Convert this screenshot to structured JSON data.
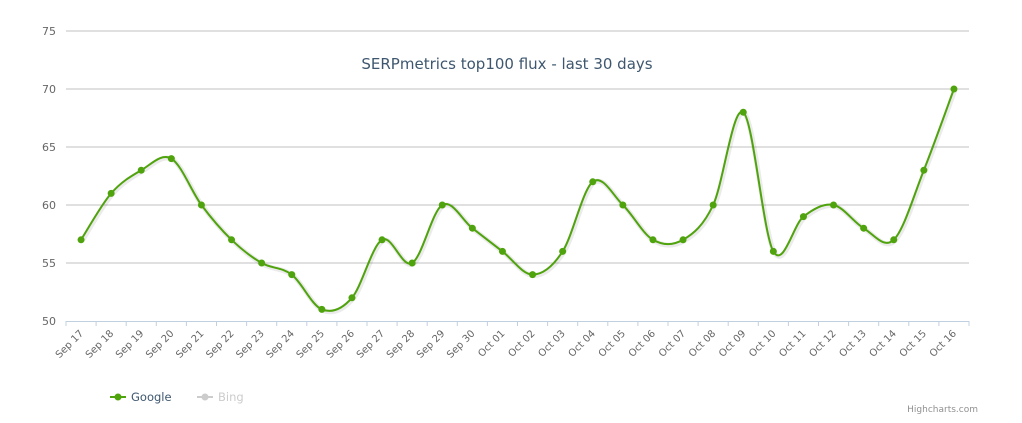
{
  "chart_data": {
    "type": "line",
    "title": "SERPmetrics top100 flux - last 30 days",
    "xlabel": "",
    "ylabel": "",
    "ylim": [
      50,
      75
    ],
    "yticks": [
      50,
      55,
      60,
      65,
      70,
      75
    ],
    "grid": true,
    "legend_position": "bottom-left",
    "categories": [
      "Sep 17",
      "Sep 18",
      "Sep 19",
      "Sep 20",
      "Sep 21",
      "Sep 22",
      "Sep 23",
      "Sep 24",
      "Sep 25",
      "Sep 26",
      "Sep 27",
      "Sep 28",
      "Sep 29",
      "Sep 30",
      "Oct 01",
      "Oct 02",
      "Oct 03",
      "Oct 04",
      "Oct 05",
      "Oct 06",
      "Oct 07",
      "Oct 08",
      "Oct 09",
      "Oct 10",
      "Oct 11",
      "Oct 12",
      "Oct 13",
      "Oct 14",
      "Oct 15",
      "Oct 16"
    ],
    "series": [
      {
        "name": "Google",
        "color": "#4fa30c",
        "visible": true,
        "values": [
          57,
          61,
          63,
          64,
          60,
          57,
          55,
          54,
          51,
          52,
          57,
          55,
          60,
          58,
          56,
          54,
          56,
          62,
          60,
          57,
          57,
          60,
          68,
          56,
          59,
          60,
          58,
          57,
          63,
          70
        ]
      },
      {
        "name": "Bing",
        "color": "#cccccc",
        "visible": false,
        "values": []
      }
    ]
  },
  "legend": {
    "items": [
      {
        "label": "Google",
        "color": "#4fa30c",
        "active": true
      },
      {
        "label": "Bing",
        "color": "#cccccc",
        "active": false
      }
    ]
  },
  "credits": "Highcharts.com",
  "colors": {
    "title": "#3e576f",
    "grid": "#c0c0c0",
    "axis": "#c0d0e0",
    "tick_label": "#666666"
  }
}
